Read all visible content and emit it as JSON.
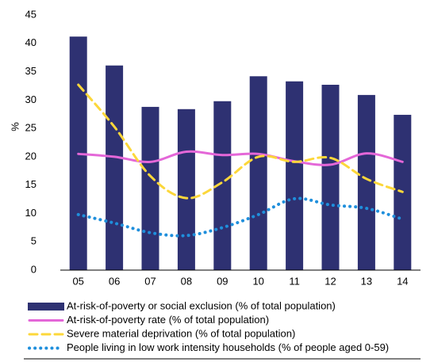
{
  "chart_data": {
    "type": "bar-line",
    "y_label": "%",
    "categories": [
      "05",
      "06",
      "07",
      "08",
      "09",
      "10",
      "11",
      "12",
      "13",
      "14"
    ],
    "ylim": [
      0,
      45
    ],
    "yticks": [
      0,
      5,
      10,
      15,
      20,
      25,
      30,
      35,
      40,
      45
    ],
    "grid": false,
    "legend": "bottom",
    "series": [
      {
        "name": "At-risk-of-poverty or social exclusion (% of total population)",
        "kind": "bar",
        "color": "#2e3172",
        "values": [
          41.2,
          36.1,
          28.8,
          28.4,
          29.8,
          34.2,
          33.3,
          32.7,
          30.9,
          27.4
        ]
      },
      {
        "name": "At-risk-of-poverty rate (% of total population)",
        "kind": "line",
        "style": "solid",
        "color": "#e467d8",
        "values": [
          20.5,
          20.0,
          19.1,
          20.9,
          20.3,
          20.5,
          19.2,
          18.6,
          20.6,
          19.1
        ]
      },
      {
        "name": "Severe material deprivation (% of total population)",
        "kind": "line",
        "style": "dashed",
        "color": "#fcd73a",
        "values": [
          32.7,
          25.3,
          16.6,
          12.7,
          15.5,
          20.0,
          19.1,
          19.8,
          16.1,
          13.8
        ]
      },
      {
        "name": "People living in low work intensity households (% of people aged 0-59)",
        "kind": "line",
        "style": "dotted",
        "color": "#1f8fdc",
        "values": [
          9.8,
          8.3,
          6.6,
          6.1,
          7.5,
          9.8,
          12.6,
          11.5,
          10.9,
          9.0
        ]
      }
    ]
  }
}
